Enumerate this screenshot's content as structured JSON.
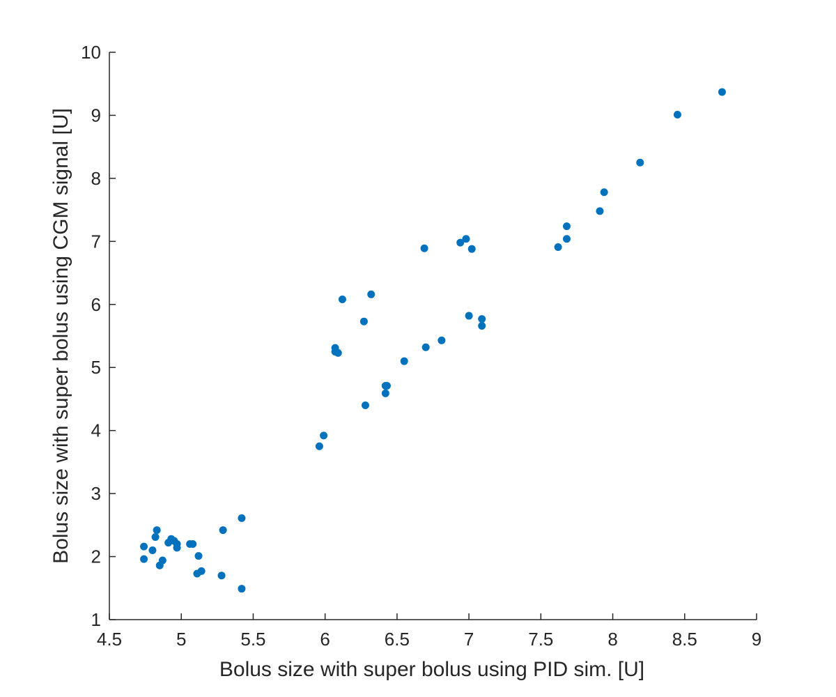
{
  "chart_data": {
    "type": "scatter",
    "title": "",
    "xlabel": "Bolus size with super bolus using PID sim. [U]",
    "ylabel": "Bolus size with super bolus using CGM signal [U]",
    "xlim": [
      4.5,
      9
    ],
    "ylim": [
      1,
      10
    ],
    "xticks": [
      4.5,
      5,
      5.5,
      6,
      6.5,
      7,
      7.5,
      8,
      8.5,
      9
    ],
    "yticks": [
      1,
      2,
      3,
      4,
      5,
      6,
      7,
      8,
      9,
      10
    ],
    "xtick_labels": [
      "4.5",
      "5",
      "5.5",
      "6",
      "6.5",
      "7",
      "7.5",
      "8",
      "8.5",
      "9"
    ],
    "ytick_labels": [
      "1",
      "2",
      "3",
      "4",
      "5",
      "6",
      "7",
      "8",
      "9",
      "10"
    ],
    "grid": false,
    "marker_color": "#0072BD",
    "series": [
      {
        "points": [
          [
            4.74,
            2.16
          ],
          [
            4.74,
            1.96
          ],
          [
            4.8,
            2.1
          ],
          [
            4.82,
            2.31
          ],
          [
            4.83,
            2.42
          ],
          [
            4.85,
            1.86
          ],
          [
            4.87,
            1.94
          ],
          [
            4.91,
            2.22
          ],
          [
            4.93,
            2.28
          ],
          [
            4.95,
            2.25
          ],
          [
            4.97,
            2.2
          ],
          [
            4.97,
            2.14
          ],
          [
            5.06,
            2.2
          ],
          [
            5.08,
            2.2
          ],
          [
            5.11,
            1.73
          ],
          [
            5.12,
            2.01
          ],
          [
            5.14,
            1.77
          ],
          [
            5.28,
            1.7
          ],
          [
            5.29,
            2.42
          ],
          [
            5.42,
            2.61
          ],
          [
            5.42,
            1.49
          ],
          [
            5.96,
            3.75
          ],
          [
            5.99,
            3.92
          ],
          [
            6.07,
            5.31
          ],
          [
            6.07,
            5.25
          ],
          [
            6.09,
            5.23
          ],
          [
            6.12,
            6.08
          ],
          [
            6.27,
            5.73
          ],
          [
            6.28,
            4.4
          ],
          [
            6.32,
            6.16
          ],
          [
            6.42,
            4.59
          ],
          [
            6.42,
            4.71
          ],
          [
            6.43,
            4.71
          ],
          [
            6.55,
            5.1
          ],
          [
            6.69,
            6.89
          ],
          [
            6.7,
            5.32
          ],
          [
            6.81,
            5.43
          ],
          [
            6.94,
            6.98
          ],
          [
            6.98,
            7.04
          ],
          [
            7.0,
            5.82
          ],
          [
            7.02,
            6.88
          ],
          [
            7.09,
            5.77
          ],
          [
            7.09,
            5.66
          ],
          [
            7.62,
            6.91
          ],
          [
            7.68,
            7.24
          ],
          [
            7.68,
            7.04
          ],
          [
            7.91,
            7.48
          ],
          [
            7.94,
            7.78
          ],
          [
            8.19,
            8.25
          ],
          [
            8.45,
            9.01
          ],
          [
            8.76,
            9.37
          ]
        ]
      }
    ]
  }
}
